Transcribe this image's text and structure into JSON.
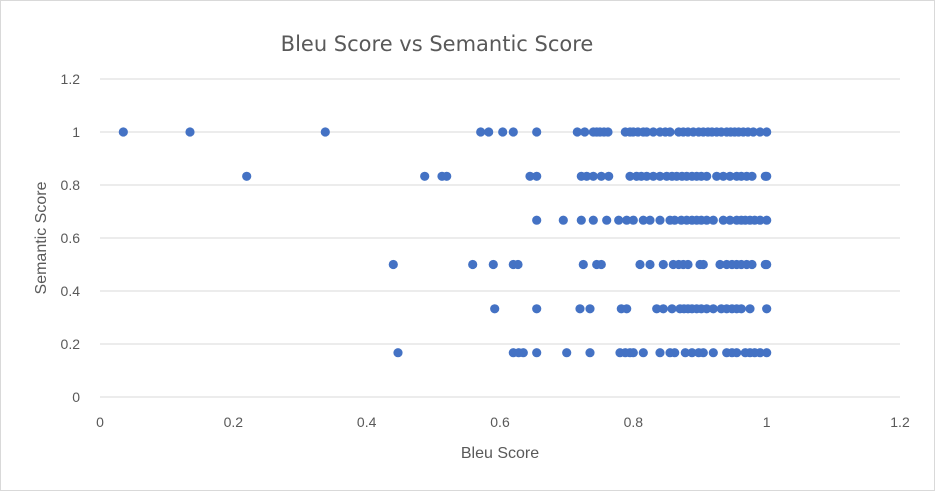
{
  "chart_data": {
    "type": "scatter",
    "title": "Bleu Score vs Semantic Score",
    "xlabel": "Bleu Score",
    "ylabel": "Semantic Score",
    "xlim": [
      0,
      1.2
    ],
    "ylim": [
      0,
      1.2
    ],
    "x_ticks": [
      "0",
      "0.2",
      "0.4",
      "0.6",
      "0.8",
      "1",
      "1.2"
    ],
    "y_ticks": [
      "0",
      "0.2",
      "0.4",
      "0.6",
      "0.8",
      "1",
      "1.2"
    ],
    "grid": "horizontal",
    "marker_color": "#4472c4",
    "series": [
      {
        "points": [
          [
            0.035,
            1.0
          ],
          [
            0.135,
            1.0
          ],
          [
            0.338,
            1.0
          ],
          [
            0.571,
            1.0
          ],
          [
            0.583,
            1.0
          ],
          [
            0.604,
            1.0
          ],
          [
            0.62,
            1.0
          ],
          [
            0.655,
            1.0
          ],
          [
            0.716,
            1.0
          ],
          [
            0.727,
            1.0
          ],
          [
            0.74,
            1.0
          ],
          [
            0.745,
            1.0
          ],
          [
            0.75,
            1.0
          ],
          [
            0.756,
            1.0
          ],
          [
            0.762,
            1.0
          ],
          [
            0.788,
            1.0
          ],
          [
            0.795,
            1.0
          ],
          [
            0.8,
            1.0
          ],
          [
            0.807,
            1.0
          ],
          [
            0.815,
            1.0
          ],
          [
            0.82,
            1.0
          ],
          [
            0.83,
            1.0
          ],
          [
            0.84,
            1.0
          ],
          [
            0.848,
            1.0
          ],
          [
            0.855,
            1.0
          ],
          [
            0.868,
            1.0
          ],
          [
            0.875,
            1.0
          ],
          [
            0.882,
            1.0
          ],
          [
            0.89,
            1.0
          ],
          [
            0.898,
            1.0
          ],
          [
            0.905,
            1.0
          ],
          [
            0.912,
            1.0
          ],
          [
            0.918,
            1.0
          ],
          [
            0.925,
            1.0
          ],
          [
            0.932,
            1.0
          ],
          [
            0.94,
            1.0
          ],
          [
            0.946,
            1.0
          ],
          [
            0.952,
            1.0
          ],
          [
            0.958,
            1.0
          ],
          [
            0.965,
            1.0
          ],
          [
            0.972,
            1.0
          ],
          [
            0.98,
            1.0
          ],
          [
            0.99,
            1.0
          ],
          [
            1.0,
            1.0
          ],
          [
            0.22,
            0.833
          ],
          [
            0.487,
            0.833
          ],
          [
            0.513,
            0.833
          ],
          [
            0.52,
            0.833
          ],
          [
            0.645,
            0.833
          ],
          [
            0.655,
            0.833
          ],
          [
            0.722,
            0.833
          ],
          [
            0.73,
            0.833
          ],
          [
            0.74,
            0.833
          ],
          [
            0.752,
            0.833
          ],
          [
            0.763,
            0.833
          ],
          [
            0.795,
            0.833
          ],
          [
            0.805,
            0.833
          ],
          [
            0.812,
            0.833
          ],
          [
            0.82,
            0.833
          ],
          [
            0.83,
            0.833
          ],
          [
            0.84,
            0.833
          ],
          [
            0.85,
            0.833
          ],
          [
            0.858,
            0.833
          ],
          [
            0.865,
            0.833
          ],
          [
            0.873,
            0.833
          ],
          [
            0.88,
            0.833
          ],
          [
            0.888,
            0.833
          ],
          [
            0.895,
            0.833
          ],
          [
            0.902,
            0.833
          ],
          [
            0.91,
            0.833
          ],
          [
            0.925,
            0.833
          ],
          [
            0.935,
            0.833
          ],
          [
            0.945,
            0.833
          ],
          [
            0.955,
            0.833
          ],
          [
            0.962,
            0.833
          ],
          [
            0.97,
            0.833
          ],
          [
            0.978,
            0.833
          ],
          [
            0.998,
            0.833
          ],
          [
            1.0,
            0.833
          ],
          [
            0.655,
            0.667
          ],
          [
            0.695,
            0.667
          ],
          [
            0.722,
            0.667
          ],
          [
            0.74,
            0.667
          ],
          [
            0.76,
            0.667
          ],
          [
            0.778,
            0.667
          ],
          [
            0.79,
            0.667
          ],
          [
            0.8,
            0.667
          ],
          [
            0.815,
            0.667
          ],
          [
            0.825,
            0.667
          ],
          [
            0.84,
            0.667
          ],
          [
            0.855,
            0.667
          ],
          [
            0.862,
            0.667
          ],
          [
            0.872,
            0.667
          ],
          [
            0.88,
            0.667
          ],
          [
            0.888,
            0.667
          ],
          [
            0.895,
            0.667
          ],
          [
            0.902,
            0.667
          ],
          [
            0.91,
            0.667
          ],
          [
            0.92,
            0.667
          ],
          [
            0.935,
            0.667
          ],
          [
            0.945,
            0.667
          ],
          [
            0.955,
            0.667
          ],
          [
            0.962,
            0.667
          ],
          [
            0.968,
            0.667
          ],
          [
            0.975,
            0.667
          ],
          [
            0.982,
            0.667
          ],
          [
            0.99,
            0.667
          ],
          [
            1.0,
            0.667
          ],
          [
            0.44,
            0.5
          ],
          [
            0.559,
            0.5
          ],
          [
            0.59,
            0.5
          ],
          [
            0.62,
            0.5
          ],
          [
            0.627,
            0.5
          ],
          [
            0.725,
            0.5
          ],
          [
            0.745,
            0.5
          ],
          [
            0.752,
            0.5
          ],
          [
            0.81,
            0.5
          ],
          [
            0.825,
            0.5
          ],
          [
            0.845,
            0.5
          ],
          [
            0.86,
            0.5
          ],
          [
            0.868,
            0.5
          ],
          [
            0.875,
            0.5
          ],
          [
            0.882,
            0.5
          ],
          [
            0.9,
            0.5
          ],
          [
            0.905,
            0.5
          ],
          [
            0.93,
            0.5
          ],
          [
            0.94,
            0.5
          ],
          [
            0.948,
            0.5
          ],
          [
            0.955,
            0.5
          ],
          [
            0.962,
            0.5
          ],
          [
            0.97,
            0.5
          ],
          [
            0.978,
            0.5
          ],
          [
            0.998,
            0.5
          ],
          [
            1.0,
            0.5
          ],
          [
            0.592,
            0.333
          ],
          [
            0.655,
            0.333
          ],
          [
            0.72,
            0.333
          ],
          [
            0.735,
            0.333
          ],
          [
            0.782,
            0.333
          ],
          [
            0.79,
            0.333
          ],
          [
            0.835,
            0.333
          ],
          [
            0.845,
            0.333
          ],
          [
            0.858,
            0.333
          ],
          [
            0.87,
            0.333
          ],
          [
            0.876,
            0.333
          ],
          [
            0.882,
            0.333
          ],
          [
            0.888,
            0.333
          ],
          [
            0.895,
            0.333
          ],
          [
            0.902,
            0.333
          ],
          [
            0.91,
            0.333
          ],
          [
            0.92,
            0.333
          ],
          [
            0.932,
            0.333
          ],
          [
            0.94,
            0.333
          ],
          [
            0.948,
            0.333
          ],
          [
            0.955,
            0.333
          ],
          [
            0.962,
            0.333
          ],
          [
            0.975,
            0.333
          ],
          [
            1.0,
            0.333
          ],
          [
            0.447,
            0.167
          ],
          [
            0.62,
            0.167
          ],
          [
            0.628,
            0.167
          ],
          [
            0.635,
            0.167
          ],
          [
            0.655,
            0.167
          ],
          [
            0.7,
            0.167
          ],
          [
            0.735,
            0.167
          ],
          [
            0.78,
            0.167
          ],
          [
            0.788,
            0.167
          ],
          [
            0.795,
            0.167
          ],
          [
            0.8,
            0.167
          ],
          [
            0.815,
            0.167
          ],
          [
            0.84,
            0.167
          ],
          [
            0.855,
            0.167
          ],
          [
            0.862,
            0.167
          ],
          [
            0.878,
            0.167
          ],
          [
            0.888,
            0.167
          ],
          [
            0.898,
            0.167
          ],
          [
            0.905,
            0.167
          ],
          [
            0.92,
            0.167
          ],
          [
            0.94,
            0.167
          ],
          [
            0.948,
            0.167
          ],
          [
            0.955,
            0.167
          ],
          [
            0.968,
            0.167
          ],
          [
            0.975,
            0.167
          ],
          [
            0.982,
            0.167
          ],
          [
            0.99,
            0.167
          ],
          [
            1.0,
            0.167
          ]
        ]
      }
    ]
  }
}
